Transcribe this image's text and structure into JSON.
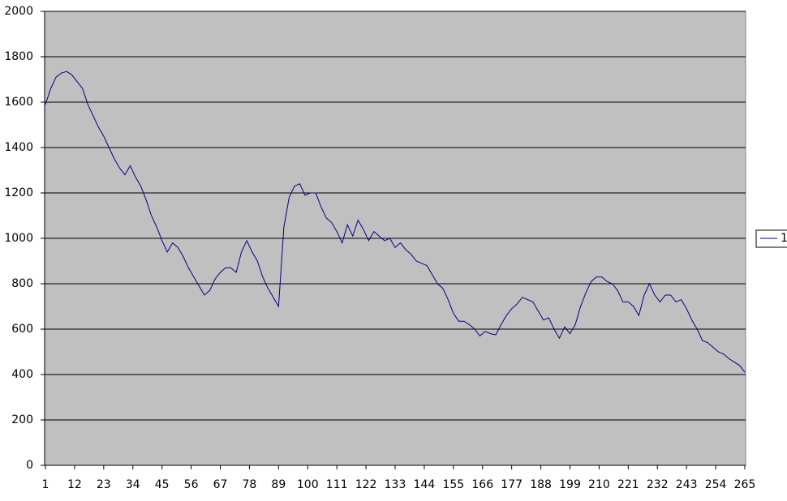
{
  "chart_data": {
    "type": "line",
    "x": [
      1,
      3,
      5,
      7,
      9,
      11,
      13,
      15,
      17,
      19,
      21,
      23,
      25,
      27,
      29,
      31,
      33,
      35,
      37,
      39,
      41,
      43,
      45,
      47,
      49,
      51,
      53,
      55,
      57,
      59,
      61,
      63,
      65,
      67,
      69,
      71,
      73,
      75,
      77,
      79,
      81,
      83,
      85,
      87,
      89,
      91,
      93,
      95,
      97,
      99,
      101,
      103,
      105,
      107,
      109,
      111,
      113,
      115,
      117,
      119,
      121,
      123,
      125,
      127,
      129,
      131,
      133,
      135,
      137,
      139,
      141,
      143,
      145,
      147,
      149,
      151,
      153,
      155,
      157,
      159,
      161,
      163,
      165,
      167,
      169,
      171,
      173,
      175,
      177,
      179,
      181,
      183,
      185,
      187,
      189,
      191,
      193,
      195,
      197,
      199,
      201,
      203,
      205,
      207,
      209,
      211,
      213,
      215,
      217,
      219,
      221,
      223,
      225,
      227,
      229,
      231,
      233,
      235,
      237,
      239,
      241,
      243,
      245,
      247,
      249,
      251,
      253,
      255,
      257,
      259,
      261,
      263,
      265
    ],
    "series": [
      {
        "name": "1",
        "color": "#000080",
        "values": [
          1590,
          1660,
          1710,
          1728,
          1735,
          1720,
          1690,
          1660,
          1590,
          1540,
          1490,
          1450,
          1400,
          1350,
          1310,
          1280,
          1320,
          1270,
          1230,
          1170,
          1100,
          1050,
          990,
          940,
          980,
          960,
          920,
          870,
          830,
          790,
          750,
          770,
          820,
          850,
          870,
          870,
          850,
          940,
          990,
          940,
          900,
          830,
          780,
          740,
          700,
          1050,
          1180,
          1230,
          1240,
          1190,
          1200,
          1200,
          1140,
          1090,
          1070,
          1030,
          980,
          1060,
          1010,
          1080,
          1040,
          990,
          1030,
          1010,
          990,
          1000,
          960,
          980,
          950,
          930,
          900,
          890,
          880,
          840,
          800,
          780,
          730,
          670,
          635,
          635,
          620,
          600,
          570,
          590,
          580,
          575,
          620,
          660,
          690,
          710,
          740,
          730,
          720,
          680,
          640,
          650,
          600,
          560,
          610,
          580,
          620,
          700,
          760,
          810,
          830,
          830,
          810,
          800,
          770,
          720,
          720,
          700,
          660,
          750,
          800,
          750,
          720,
          750,
          750,
          720,
          730,
          690,
          640,
          600,
          550,
          540,
          520,
          500,
          490,
          470,
          455,
          440,
          410
        ]
      }
    ],
    "xlim": [
      1,
      265
    ],
    "xticks": [
      1,
      12,
      23,
      34,
      45,
      56,
      67,
      78,
      89,
      100,
      111,
      122,
      133,
      144,
      155,
      166,
      177,
      188,
      199,
      210,
      221,
      232,
      243,
      254,
      265
    ],
    "ylim": [
      0,
      2000
    ],
    "yticks": [
      0,
      200,
      400,
      600,
      800,
      1000,
      1200,
      1400,
      1600,
      1800,
      2000
    ],
    "grid": true,
    "legend": "right"
  }
}
